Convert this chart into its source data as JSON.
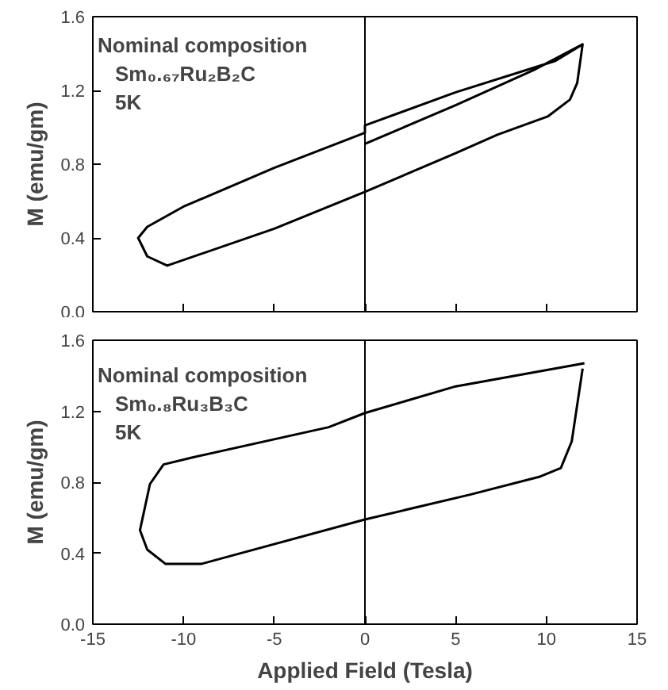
{
  "chart_data": [
    {
      "type": "line",
      "ylabel": "M (emu/gm)",
      "xlim": [
        -15,
        15
      ],
      "xticks": [
        -15,
        -10,
        -5,
        0,
        5,
        10,
        15
      ],
      "ylim": [
        0,
        1.6
      ],
      "yticks": [
        {
          "value": 0,
          "label": "0.0"
        },
        {
          "value": 0.4,
          "label": "0.4"
        },
        {
          "value": 0.8,
          "label": "0.8"
        },
        {
          "value": 1.2,
          "label": "1.2"
        },
        {
          "value": 1.6,
          "label": "1.6"
        }
      ],
      "tick_labels": "y",
      "grid": false,
      "marker": "none",
      "line_style": "solid",
      "ref_lines": [
        {
          "axis": "x",
          "value": 0,
          "color": "#000000"
        }
      ],
      "annotations": [
        "Nominal composition",
        "Sm₀.₆₇Ru₂B₂C",
        "5K"
      ],
      "series": [
        {
          "color": "#000000",
          "x": [
            0,
            5,
            9.3,
            12,
            10.5,
            5,
            0,
            0,
            -5,
            -10,
            -12,
            -12.5,
            -12,
            -10.9,
            -5,
            0,
            5,
            7.3,
            10.1,
            11.3,
            11.7,
            12
          ],
          "values": [
            0.91,
            1.12,
            1.31,
            1.45,
            1.36,
            1.19,
            1.01,
            0.97,
            0.78,
            0.57,
            0.46,
            0.4,
            0.3,
            0.25,
            0.45,
            0.65,
            0.86,
            0.96,
            1.06,
            1.15,
            1.24,
            1.45
          ]
        }
      ]
    },
    {
      "type": "line",
      "ylabel": "M (emu/gm)",
      "xlabel": "Applied Field (Tesla)",
      "xlim": [
        -15,
        15
      ],
      "xticks": [
        -15,
        -10,
        -5,
        0,
        5,
        10,
        15
      ],
      "ylim": [
        0,
        1.6
      ],
      "yticks": [
        {
          "value": 0,
          "label": "0.0"
        },
        {
          "value": 0.4,
          "label": "0.4"
        },
        {
          "value": 0.8,
          "label": "0.8"
        },
        {
          "value": 1.2,
          "label": "1.2"
        },
        {
          "value": 1.6,
          "label": "1.6"
        }
      ],
      "grid": false,
      "marker": "none",
      "line_style": "solid",
      "ref_lines": [
        {
          "axis": "x",
          "value": 0,
          "color": "#000000"
        }
      ],
      "annotations": [
        "Nominal composition",
        "Sm₀.₈Ru₃B₃C",
        "5K"
      ],
      "series": [
        {
          "color": "#000000",
          "x": [
            12.1,
            5,
            0,
            -2,
            -9.5,
            -11.1,
            -11.85,
            -12.4,
            -12,
            -11,
            -9,
            0,
            5.8,
            9.6,
            10.8,
            11.4,
            12
          ],
          "values": [
            1.47,
            1.34,
            1.19,
            1.11,
            0.94,
            0.9,
            0.79,
            0.53,
            0.42,
            0.34,
            0.34,
            0.59,
            0.73,
            0.83,
            0.88,
            1.03,
            1.44
          ]
        }
      ]
    }
  ]
}
